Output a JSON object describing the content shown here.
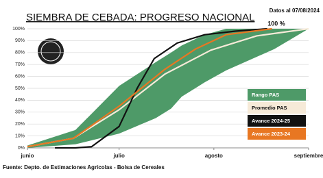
{
  "chart_data": {
    "type": "line",
    "title": "SIEMBRA DE CEBADA: PROGRESO NACIONAL",
    "subtitle": "Datos al 07/08/2024",
    "source": "Fuente: Depto. de Estimaciones Agrícolas - Bolsa de Cereales",
    "annotation": "100 %",
    "xlim": [
      0,
      92
    ],
    "xticks": [
      {
        "value": 0,
        "label": "junio"
      },
      {
        "value": 30,
        "label": "julio"
      },
      {
        "value": 61,
        "label": "agosto"
      },
      {
        "value": 92,
        "label": "septiembre"
      }
    ],
    "ylim": [
      0,
      100
    ],
    "yticks": [
      {
        "value": 0,
        "label": "0%"
      },
      {
        "value": 10,
        "label": "10%"
      },
      {
        "value": 20,
        "label": "20%"
      },
      {
        "value": 30,
        "label": "30%"
      },
      {
        "value": 40,
        "label": "40%"
      },
      {
        "value": 50,
        "label": "50%"
      },
      {
        "value": 60,
        "label": "60%"
      },
      {
        "value": 70,
        "label": "70%"
      },
      {
        "value": 80,
        "label": "80%"
      },
      {
        "value": 90,
        "label": "90%"
      },
      {
        "value": 100,
        "label": "100%"
      }
    ],
    "grid": true,
    "series": [
      {
        "name": "Rango PAS",
        "color": "#4e9a68",
        "x": [
          0,
          15.7,
          30,
          42,
          47,
          50.5,
          58,
          65,
          80.8,
          92
        ],
        "lower": [
          0,
          3,
          12,
          25,
          33,
          43,
          55,
          65,
          83,
          100
        ],
        "upper": [
          2,
          15,
          52,
          72,
          80,
          86,
          95,
          100,
          100,
          100
        ]
      },
      {
        "name": "Promedio PAS",
        "color": "#f6ead8",
        "x": [
          0,
          15,
          30,
          45,
          60,
          75,
          92
        ],
        "values": [
          1,
          8,
          32,
          62,
          82,
          94,
          100
        ]
      },
      {
        "name": "Avance 2024-25",
        "color": "#111111",
        "x": [
          9,
          15.7,
          21,
          30,
          35.9,
          41.5,
          49,
          58,
          68,
          78.5
        ],
        "values": [
          0,
          0,
          1,
          18,
          50,
          75,
          88,
          95,
          98,
          100
        ]
      },
      {
        "name": "Avance 2023-24",
        "color": "#e87722",
        "x": [
          0,
          15,
          30,
          45,
          55,
          65,
          80
        ],
        "values": [
          1,
          8,
          35,
          66,
          83,
          95,
          100
        ]
      }
    ]
  }
}
